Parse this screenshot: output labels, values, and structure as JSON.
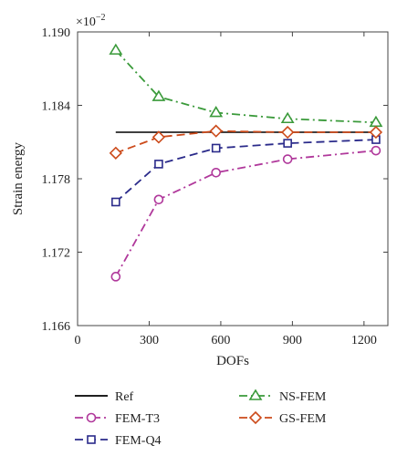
{
  "chart_data": {
    "type": "line",
    "xlabel": "DOFs",
    "ylabel": "Strain energy",
    "y_multiplier_label": "×10",
    "y_multiplier_exp": "−2",
    "xlim": [
      0,
      1300
    ],
    "ylim": [
      1.166,
      1.19
    ],
    "xticks": [
      0,
      300,
      600,
      900,
      1200
    ],
    "xtick_labels": [
      "0",
      "300",
      "600",
      "900",
      "1200"
    ],
    "yticks": [
      1.166,
      1.172,
      1.178,
      1.184,
      1.19
    ],
    "ytick_labels": [
      "1.166",
      "1.172",
      "1.178",
      "1.184",
      "1.190"
    ],
    "grid": false,
    "legend_position": "bottom",
    "series": [
      {
        "name": "Ref",
        "color": "#000000",
        "marker": "none",
        "dash": "solid",
        "x": [
          160,
          1250
        ],
        "y": [
          1.1818,
          1.1818
        ]
      },
      {
        "name": "FEM-T3",
        "color": "#b0389b",
        "marker": "circle",
        "dash": "dashdot",
        "x": [
          160,
          340,
          580,
          880,
          1250
        ],
        "y": [
          1.17,
          1.1763,
          1.1785,
          1.1796,
          1.1803
        ]
      },
      {
        "name": "FEM-Q4",
        "color": "#2a2a8a",
        "marker": "square",
        "dash": "dashed",
        "x": [
          160,
          340,
          580,
          880,
          1250
        ],
        "y": [
          1.1761,
          1.1792,
          1.1805,
          1.1809,
          1.1812
        ]
      },
      {
        "name": "NS-FEM",
        "color": "#3a9a3a",
        "marker": "triangle",
        "dash": "dashdot",
        "x": [
          160,
          340,
          580,
          880,
          1250
        ],
        "y": [
          1.1885,
          1.1847,
          1.1834,
          1.1829,
          1.1826
        ]
      },
      {
        "name": "GS-FEM",
        "color": "#cc4a1a",
        "marker": "diamond",
        "dash": "dashed",
        "x": [
          160,
          340,
          580,
          880,
          1250
        ],
        "y": [
          1.1801,
          1.1814,
          1.1819,
          1.1818,
          1.1818
        ]
      }
    ]
  }
}
